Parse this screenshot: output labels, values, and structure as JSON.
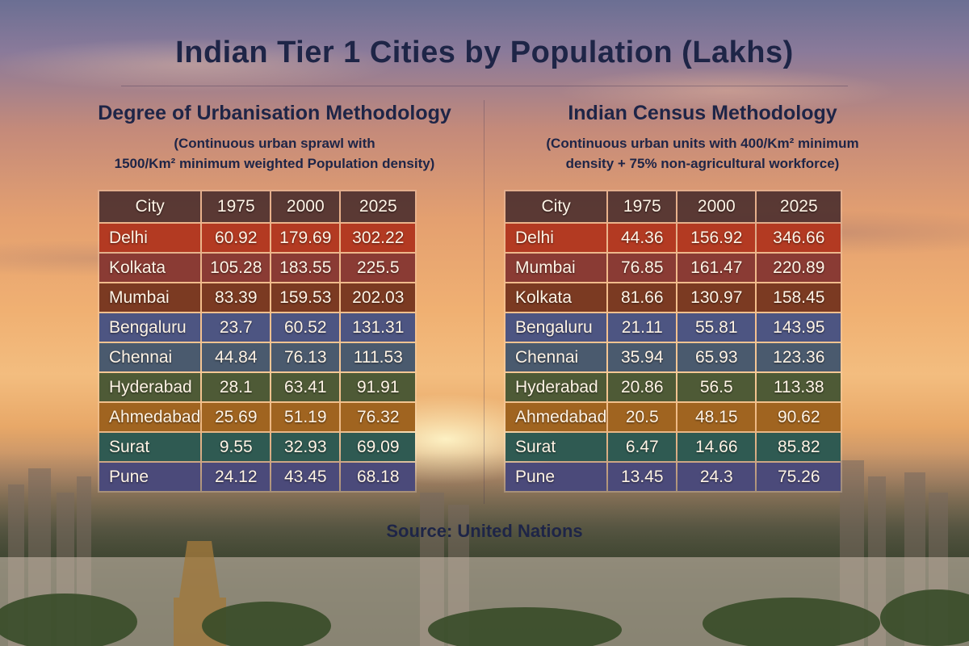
{
  "title": "Indian Tier 1 Cities by Population (Lakhs)",
  "source": "Source: United Nations",
  "row_colors": [
    "#b33a22",
    "#8a3b34",
    "#7b3a22",
    "#4d5582",
    "#4a5a6e",
    "#4e5a36",
    "#a06420",
    "#2f5a52",
    "#4b4a7a"
  ],
  "chart_data": [
    {
      "type": "table",
      "title": "Degree of Urbanisation Methodology",
      "subtitle_line1": "(Continuous urban sprawl with",
      "subtitle_line2": "1500/Km² minimum weighted Population density)",
      "columns": [
        "City",
        "1975",
        "2000",
        "2025"
      ],
      "rows": [
        [
          "Delhi",
          "60.92",
          "179.69",
          "302.22"
        ],
        [
          "Kolkata",
          "105.28",
          "183.55",
          "225.5"
        ],
        [
          "Mumbai",
          "83.39",
          "159.53",
          "202.03"
        ],
        [
          "Bengaluru",
          "23.7",
          "60.52",
          "131.31"
        ],
        [
          "Chennai",
          "44.84",
          "76.13",
          "111.53"
        ],
        [
          "Hyderabad",
          "28.1",
          "63.41",
          "91.91"
        ],
        [
          "Ahmedabad",
          "25.69",
          "51.19",
          "76.32"
        ],
        [
          "Surat",
          "9.55",
          "32.93",
          "69.09"
        ],
        [
          "Pune",
          "24.12",
          "43.45",
          "68.18"
        ]
      ]
    },
    {
      "type": "table",
      "title": "Indian Census Methodology",
      "subtitle_line1": "(Continuous urban units with 400/Km² minimum",
      "subtitle_line2": "density + 75% non-agricultural workforce)",
      "columns": [
        "City",
        "1975",
        "2000",
        "2025"
      ],
      "rows": [
        [
          "Delhi",
          "44.36",
          "156.92",
          "346.66"
        ],
        [
          "Mumbai",
          "76.85",
          "161.47",
          "220.89"
        ],
        [
          "Kolkata",
          "81.66",
          "130.97",
          "158.45"
        ],
        [
          "Bengaluru",
          "21.11",
          "55.81",
          "143.95"
        ],
        [
          "Chennai",
          "35.94",
          "65.93",
          "123.36"
        ],
        [
          "Hyderabad",
          "20.86",
          "56.5",
          "113.38"
        ],
        [
          "Ahmedabad",
          "20.5",
          "48.15",
          "90.62"
        ],
        [
          "Surat",
          "6.47",
          "14.66",
          "85.82"
        ],
        [
          "Pune",
          "13.45",
          "24.3",
          "75.26"
        ]
      ]
    }
  ]
}
